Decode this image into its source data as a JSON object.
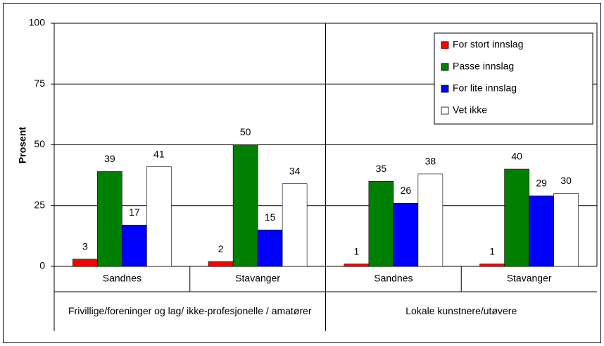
{
  "chart_data": {
    "type": "bar",
    "ylabel": "Prosent",
    "categories": [
      "Sandnes",
      "Stavanger",
      "Sandnes",
      "Stavanger"
    ],
    "groups": [
      {
        "label": "Frivillige/foreninger og lag/ ikke-profesjonelle / amatører",
        "span": 2
      },
      {
        "label": "Lokale kunstnere/utøvere",
        "span": 2
      }
    ],
    "series": [
      {
        "name": "For stort innslag",
        "color": "#ff0000",
        "values": [
          3,
          2,
          1,
          1
        ]
      },
      {
        "name": "Passe innslag",
        "color": "#008000",
        "values": [
          39,
          50,
          35,
          40
        ]
      },
      {
        "name": "For lite innslag",
        "color": "#0000ff",
        "values": [
          17,
          15,
          26,
          29
        ]
      },
      {
        "name": "Vet ikke",
        "color": "#ffffff",
        "values": [
          41,
          34,
          38,
          30
        ]
      }
    ],
    "ylim": [
      0,
      100
    ],
    "yticks": [
      0,
      25,
      50,
      75,
      100
    ],
    "grid": true,
    "legend": "top-right"
  }
}
